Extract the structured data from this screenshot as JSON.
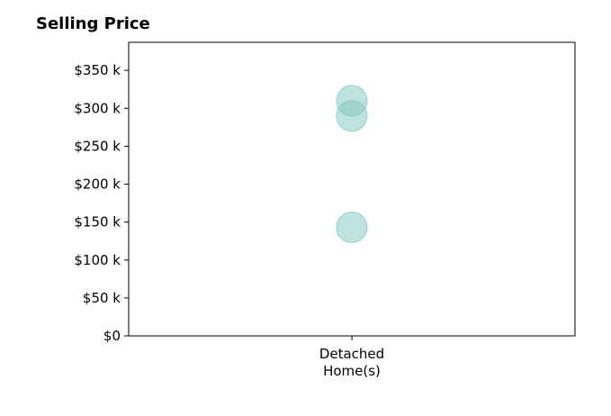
{
  "chart_data": {
    "type": "scatter",
    "title": "Selling Price",
    "xlabel": "",
    "ylabel": "",
    "categories": [
      "Detached\nHome(s)"
    ],
    "series": [
      {
        "category": "Detached\nHome(s)",
        "values": [
          310000,
          290000,
          143000
        ],
        "color": "#7fc8be",
        "opacity": 0.5
      }
    ],
    "ylim": [
      0,
      387000
    ],
    "yticks": [
      0,
      50000,
      100000,
      150000,
      200000,
      250000,
      300000,
      350000
    ],
    "ytick_labels": [
      "$0",
      "$50 k",
      "$100 k",
      "$150 k",
      "$200 k",
      "$250 k",
      "$300 k",
      "$350 k"
    ],
    "grid": false,
    "legend": "none"
  }
}
